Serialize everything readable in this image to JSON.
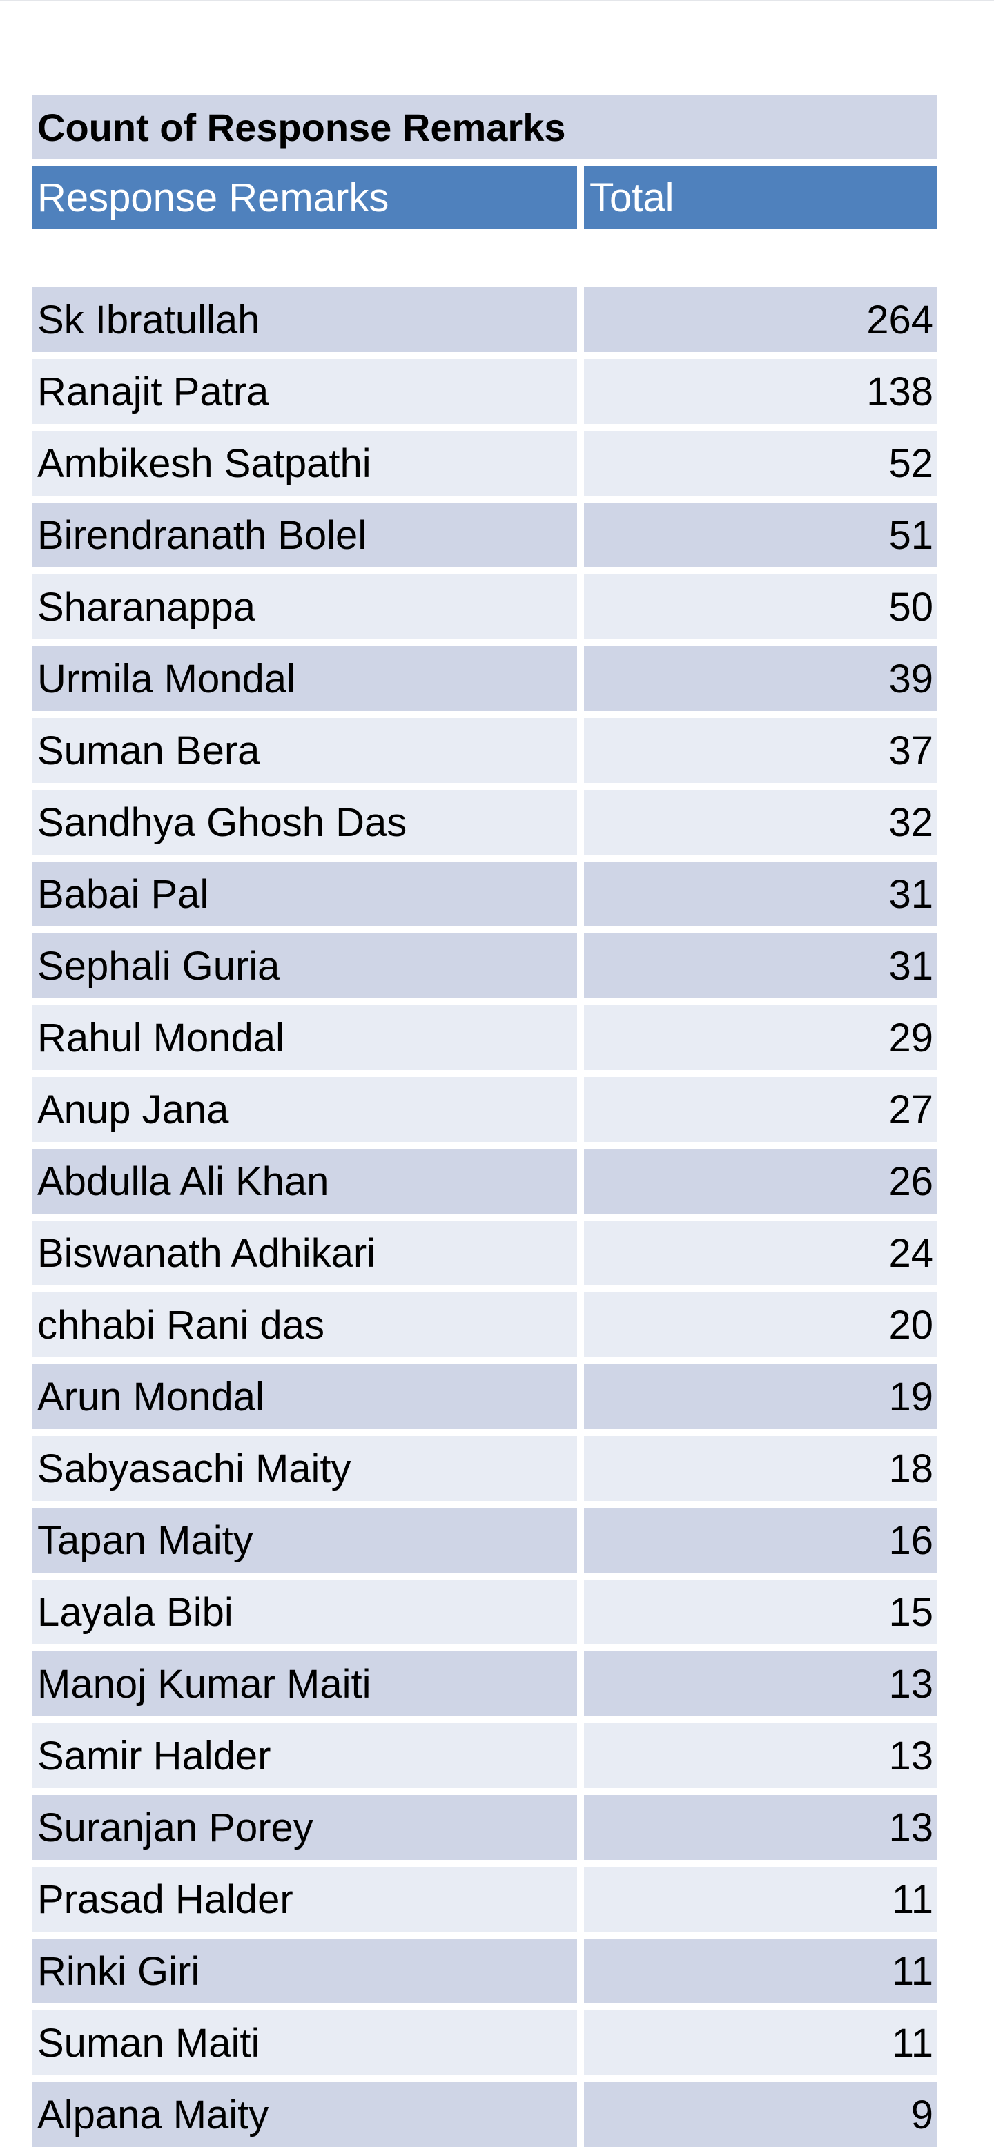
{
  "table": {
    "title": "Count of Response Remarks",
    "headers": {
      "name": "Response Remarks",
      "total": "Total"
    },
    "rows": [
      {
        "name": "Sk Ibratullah",
        "total": "264",
        "shade": "dark"
      },
      {
        "name": "Ranajit Patra",
        "total": "138",
        "shade": "light"
      },
      {
        "name": "Ambikesh Satpathi",
        "total": "52",
        "shade": "light"
      },
      {
        "name": "Birendranath Bolel",
        "total": "51",
        "shade": "dark"
      },
      {
        "name": "Sharanappa",
        "total": "50",
        "shade": "light"
      },
      {
        "name": "Urmila Mondal",
        "total": "39",
        "shade": "dark"
      },
      {
        "name": "Suman Bera",
        "total": "37",
        "shade": "light"
      },
      {
        "name": "Sandhya Ghosh Das",
        "total": "32",
        "shade": "light"
      },
      {
        "name": "Babai Pal",
        "total": "31",
        "shade": "dark"
      },
      {
        "name": "Sephali Guria",
        "total": "31",
        "shade": "dark"
      },
      {
        "name": "Rahul Mondal",
        "total": "29",
        "shade": "light"
      },
      {
        "name": "Anup Jana",
        "total": "27",
        "shade": "light"
      },
      {
        "name": "Abdulla Ali Khan",
        "total": "26",
        "shade": "dark"
      },
      {
        "name": "Biswanath Adhikari",
        "total": "24",
        "shade": "light"
      },
      {
        "name": "chhabi Rani das",
        "total": "20",
        "shade": "light"
      },
      {
        "name": "Arun Mondal",
        "total": "19",
        "shade": "dark"
      },
      {
        "name": "Sabyasachi Maity",
        "total": "18",
        "shade": "light"
      },
      {
        "name": "Tapan Maity",
        "total": "16",
        "shade": "dark"
      },
      {
        "name": "Layala Bibi",
        "total": "15",
        "shade": "light"
      },
      {
        "name": "Manoj Kumar Maiti",
        "total": "13",
        "shade": "dark"
      },
      {
        "name": "Samir Halder",
        "total": "13",
        "shade": "light"
      },
      {
        "name": "Suranjan Porey",
        "total": "13",
        "shade": "dark"
      },
      {
        "name": "Prasad Halder",
        "total": "11",
        "shade": "light"
      },
      {
        "name": "Rinki Giri",
        "total": "11",
        "shade": "dark"
      },
      {
        "name": "Suman Maiti",
        "total": "11",
        "shade": "light"
      },
      {
        "name": "Alpana Maity",
        "total": "9",
        "shade": "dark"
      }
    ]
  },
  "colors": {
    "header_blue": "#4f81bd",
    "row_dark": "#cfd5e6",
    "row_light": "#e8ecf4"
  }
}
